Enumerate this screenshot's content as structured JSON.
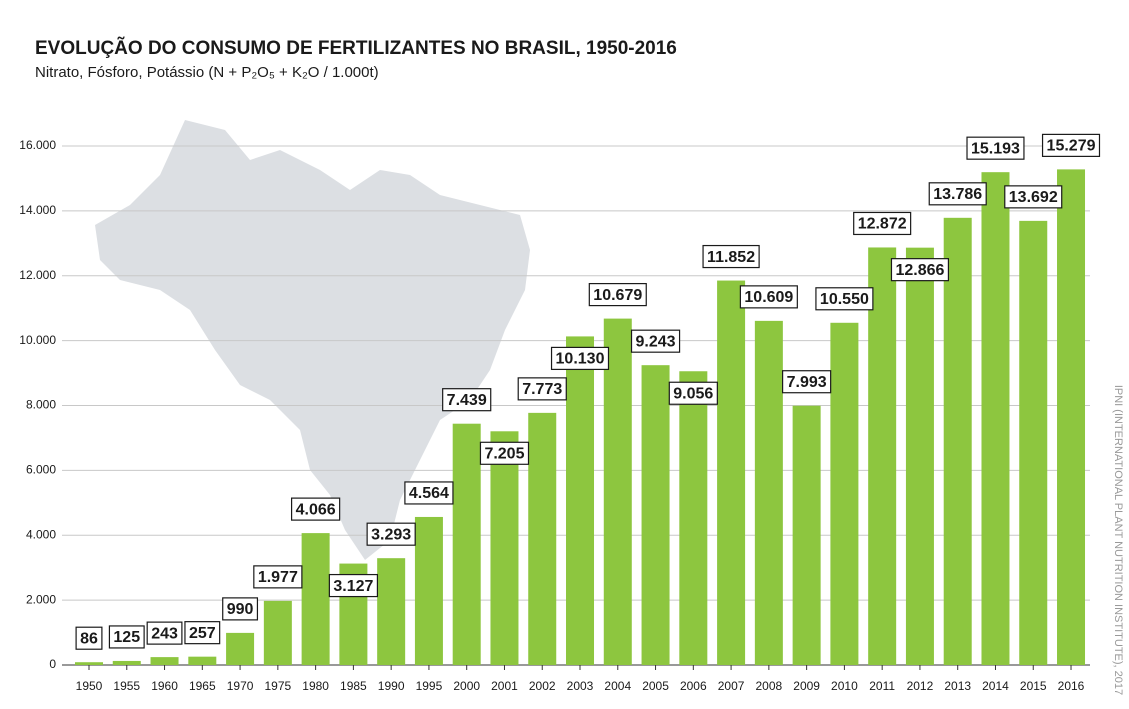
{
  "chart_data": {
    "type": "bar",
    "title": "EVOLUÇÃO DO CONSUMO DE FERTILIZANTES NO BRASIL, 1950-2016",
    "subtitle": "Nitrato, Fósforo, Potássio (N + P₂O₅ + K₂O / 1.000t)",
    "source": "IPNI (INTERNATIONAL PLANT NUTRITION INSTITUTE), 2017",
    "categories": [
      "1950",
      "1955",
      "1960",
      "1965",
      "1970",
      "1975",
      "1980",
      "1985",
      "1990",
      "1995",
      "2000",
      "2001",
      "2002",
      "2003",
      "2004",
      "2005",
      "2006",
      "2007",
      "2008",
      "2009",
      "2010",
      "2011",
      "2012",
      "2013",
      "2014",
      "2015",
      "2016"
    ],
    "values": [
      86,
      125,
      243,
      257,
      990,
      1977,
      4066,
      3127,
      3293,
      4564,
      7439,
      7205,
      7773,
      10130,
      10679,
      9243,
      9056,
      11852,
      10609,
      7993,
      10550,
      12872,
      12866,
      13786,
      15193,
      13692,
      15279
    ],
    "value_labels": [
      "86",
      "125",
      "243",
      "257",
      "990",
      "1.977",
      "4.066",
      "3.127",
      "3.293",
      "4.564",
      "7.439",
      "7.205",
      "7.773",
      "10.130",
      "10.679",
      "9.243",
      "9.056",
      "11.852",
      "10.609",
      "7.993",
      "10.550",
      "12.872",
      "12.866",
      "13.786",
      "15.193",
      "13.692",
      "15.279"
    ],
    "color": "#8dc63f",
    "ylim": [
      0,
      16000
    ],
    "yticks": [
      0,
      {
        "value": 2000,
        "label": "2.000"
      },
      {
        "value": 4000,
        "label": "4.000"
      },
      {
        "value": 6000,
        "label": "6.000"
      },
      {
        "value": 8000,
        "label": "8.000"
      },
      {
        "value": 10000,
        "label": "10.000"
      },
      {
        "value": 12000,
        "label": "12.000"
      },
      {
        "value": 14000,
        "label": "14.000"
      },
      {
        "value": 16000,
        "label": "16.000"
      }
    ],
    "grid": true
  }
}
